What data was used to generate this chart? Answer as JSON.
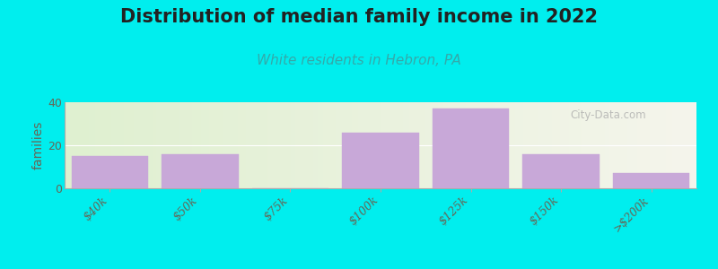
{
  "title": "Distribution of median family income in 2022",
  "subtitle": "White residents in Hebron, PA",
  "title_fontsize": 15,
  "subtitle_fontsize": 11,
  "subtitle_color": "#33aaaa",
  "ylabel": "families",
  "ylabel_fontsize": 10,
  "categories": [
    "$40k",
    "$50k",
    "$75k",
    "$100k",
    "$125k",
    "$150k",
    ">$200k"
  ],
  "values": [
    15,
    16,
    0,
    26,
    37,
    16,
    7
  ],
  "bar_color": "#c8a8d8",
  "bar_edgecolor": "#c8a8d8",
  "ylim": [
    0,
    40
  ],
  "yticks": [
    0,
    20,
    40
  ],
  "background_color": "#00EEEE",
  "plot_bg_left": "#dff0d0",
  "plot_bg_right": "#f5f5ec",
  "watermark": "City-Data.com",
  "figsize": [
    8.0,
    3.0
  ],
  "dpi": 100
}
